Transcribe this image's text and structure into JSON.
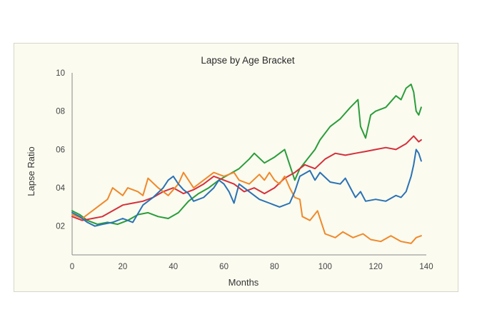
{
  "chart_data": {
    "type": "line",
    "title": "Lapse by Age Bracket",
    "xlabel": "Months",
    "ylabel": "Lapse Ratio",
    "xlim": [
      0,
      140
    ],
    "ylim": [
      0.05,
      1.0
    ],
    "x_ticks": [
      0,
      20,
      40,
      60,
      80,
      100,
      120,
      140
    ],
    "x_tick_labels": [
      "0",
      "20",
      "40",
      "60",
      "80",
      "100",
      "120",
      "140"
    ],
    "y_ticks": [
      0.2,
      0.4,
      0.6,
      0.8,
      1.0
    ],
    "y_tick_labels": [
      "02",
      "04",
      "06",
      "08",
      "10"
    ],
    "grid": false,
    "legend": "none",
    "series": [
      {
        "color": "#2a9d3a",
        "points": [
          [
            0,
            0.28
          ],
          [
            3,
            0.26
          ],
          [
            6,
            0.23
          ],
          [
            10,
            0.21
          ],
          [
            14,
            0.22
          ],
          [
            18,
            0.21
          ],
          [
            22,
            0.23
          ],
          [
            26,
            0.26
          ],
          [
            30,
            0.27
          ],
          [
            34,
            0.25
          ],
          [
            38,
            0.24
          ],
          [
            42,
            0.27
          ],
          [
            46,
            0.33
          ],
          [
            50,
            0.37
          ],
          [
            54,
            0.4
          ],
          [
            58,
            0.44
          ],
          [
            62,
            0.47
          ],
          [
            66,
            0.5
          ],
          [
            70,
            0.55
          ],
          [
            72,
            0.58
          ],
          [
            76,
            0.53
          ],
          [
            80,
            0.56
          ],
          [
            84,
            0.6
          ],
          [
            86,
            0.52
          ],
          [
            88,
            0.44
          ],
          [
            90,
            0.5
          ],
          [
            93,
            0.55
          ],
          [
            96,
            0.6
          ],
          [
            98,
            0.65
          ],
          [
            102,
            0.72
          ],
          [
            106,
            0.76
          ],
          [
            110,
            0.82
          ],
          [
            113,
            0.86
          ],
          [
            114,
            0.72
          ],
          [
            116,
            0.66
          ],
          [
            118,
            0.78
          ],
          [
            120,
            0.8
          ],
          [
            124,
            0.82
          ],
          [
            128,
            0.88
          ],
          [
            130,
            0.86
          ],
          [
            132,
            0.92
          ],
          [
            134,
            0.94
          ],
          [
            135,
            0.9
          ],
          [
            136,
            0.8
          ],
          [
            137,
            0.78
          ],
          [
            138,
            0.82
          ]
        ]
      },
      {
        "color": "#d62f3a",
        "points": [
          [
            0,
            0.25
          ],
          [
            4,
            0.23
          ],
          [
            8,
            0.24
          ],
          [
            12,
            0.25
          ],
          [
            16,
            0.28
          ],
          [
            20,
            0.31
          ],
          [
            24,
            0.32
          ],
          [
            28,
            0.33
          ],
          [
            32,
            0.35
          ],
          [
            36,
            0.38
          ],
          [
            40,
            0.4
          ],
          [
            44,
            0.37
          ],
          [
            48,
            0.39
          ],
          [
            52,
            0.42
          ],
          [
            56,
            0.46
          ],
          [
            60,
            0.44
          ],
          [
            64,
            0.42
          ],
          [
            68,
            0.38
          ],
          [
            72,
            0.4
          ],
          [
            76,
            0.37
          ],
          [
            80,
            0.4
          ],
          [
            84,
            0.45
          ],
          [
            88,
            0.48
          ],
          [
            92,
            0.52
          ],
          [
            96,
            0.5
          ],
          [
            100,
            0.55
          ],
          [
            104,
            0.58
          ],
          [
            108,
            0.57
          ],
          [
            112,
            0.58
          ],
          [
            116,
            0.59
          ],
          [
            120,
            0.6
          ],
          [
            124,
            0.61
          ],
          [
            128,
            0.6
          ],
          [
            132,
            0.63
          ],
          [
            135,
            0.67
          ],
          [
            137,
            0.64
          ],
          [
            138,
            0.65
          ]
        ]
      },
      {
        "color": "#f0892a",
        "points": [
          [
            0,
            0.26
          ],
          [
            4,
            0.24
          ],
          [
            8,
            0.28
          ],
          [
            10,
            0.3
          ],
          [
            14,
            0.34
          ],
          [
            16,
            0.4
          ],
          [
            18,
            0.38
          ],
          [
            20,
            0.36
          ],
          [
            22,
            0.4
          ],
          [
            26,
            0.38
          ],
          [
            28,
            0.36
          ],
          [
            30,
            0.45
          ],
          [
            34,
            0.4
          ],
          [
            38,
            0.36
          ],
          [
            42,
            0.42
          ],
          [
            44,
            0.48
          ],
          [
            46,
            0.44
          ],
          [
            48,
            0.4
          ],
          [
            52,
            0.44
          ],
          [
            56,
            0.48
          ],
          [
            60,
            0.46
          ],
          [
            64,
            0.48
          ],
          [
            66,
            0.44
          ],
          [
            70,
            0.42
          ],
          [
            74,
            0.47
          ],
          [
            76,
            0.44
          ],
          [
            78,
            0.48
          ],
          [
            80,
            0.44
          ],
          [
            82,
            0.42
          ],
          [
            84,
            0.46
          ],
          [
            86,
            0.4
          ],
          [
            88,
            0.35
          ],
          [
            90,
            0.34
          ],
          [
            91,
            0.25
          ],
          [
            94,
            0.23
          ],
          [
            97,
            0.28
          ],
          [
            99,
            0.2
          ],
          [
            100,
            0.16
          ],
          [
            104,
            0.14
          ],
          [
            107,
            0.17
          ],
          [
            111,
            0.14
          ],
          [
            115,
            0.16
          ],
          [
            118,
            0.13
          ],
          [
            122,
            0.12
          ],
          [
            126,
            0.15
          ],
          [
            130,
            0.12
          ],
          [
            134,
            0.11
          ],
          [
            136,
            0.14
          ],
          [
            138,
            0.15
          ]
        ]
      },
      {
        "color": "#2a72b5",
        "points": [
          [
            0,
            0.27
          ],
          [
            3,
            0.25
          ],
          [
            6,
            0.22
          ],
          [
            9,
            0.2
          ],
          [
            12,
            0.21
          ],
          [
            16,
            0.22
          ],
          [
            20,
            0.24
          ],
          [
            24,
            0.22
          ],
          [
            28,
            0.31
          ],
          [
            32,
            0.35
          ],
          [
            36,
            0.4
          ],
          [
            38,
            0.44
          ],
          [
            40,
            0.46
          ],
          [
            42,
            0.42
          ],
          [
            44,
            0.39
          ],
          [
            46,
            0.37
          ],
          [
            48,
            0.33
          ],
          [
            52,
            0.35
          ],
          [
            56,
            0.4
          ],
          [
            58,
            0.44
          ],
          [
            60,
            0.42
          ],
          [
            62,
            0.38
          ],
          [
            64,
            0.32
          ],
          [
            66,
            0.42
          ],
          [
            70,
            0.38
          ],
          [
            74,
            0.34
          ],
          [
            78,
            0.32
          ],
          [
            82,
            0.3
          ],
          [
            86,
            0.32
          ],
          [
            88,
            0.38
          ],
          [
            90,
            0.46
          ],
          [
            94,
            0.49
          ],
          [
            96,
            0.44
          ],
          [
            98,
            0.48
          ],
          [
            102,
            0.43
          ],
          [
            106,
            0.42
          ],
          [
            108,
            0.45
          ],
          [
            110,
            0.4
          ],
          [
            112,
            0.35
          ],
          [
            114,
            0.38
          ],
          [
            116,
            0.33
          ],
          [
            120,
            0.34
          ],
          [
            124,
            0.33
          ],
          [
            128,
            0.36
          ],
          [
            130,
            0.35
          ],
          [
            132,
            0.38
          ],
          [
            134,
            0.46
          ],
          [
            135,
            0.52
          ],
          [
            136,
            0.6
          ],
          [
            137,
            0.58
          ],
          [
            138,
            0.54
          ]
        ]
      }
    ]
  }
}
